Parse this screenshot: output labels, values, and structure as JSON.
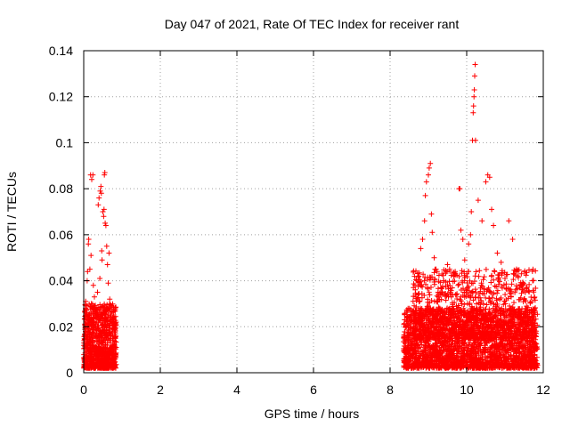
{
  "chart_data": {
    "type": "scatter",
    "title": "Day 047 of 2021, Rate Of TEC Index for receiver rant",
    "xlabel": "GPS time / hours",
    "ylabel": "ROTI / TECUs",
    "xlim": [
      0,
      12
    ],
    "ylim": [
      0,
      0.14
    ],
    "x_ticks": [
      0,
      2,
      4,
      6,
      8,
      10,
      12
    ],
    "y_ticks": [
      0,
      0.02,
      0.04,
      0.06,
      0.08,
      0.1,
      0.12,
      0.14
    ],
    "grid": true,
    "marker": "+",
    "color": "#ff0000",
    "series": [
      {
        "values": [
          {
            "x": 0.02,
            "y": 0.005
          },
          {
            "x": 0.03,
            "y": 0.012
          },
          {
            "x": 0.04,
            "y": 0.021
          },
          {
            "x": 0.05,
            "y": 0.028
          },
          {
            "x": 0.05,
            "y": 0.031
          },
          {
            "x": 0.06,
            "y": 0.016
          },
          {
            "x": 0.08,
            "y": 0.009
          },
          {
            "x": 0.09,
            "y": 0.04
          },
          {
            "x": 0.1,
            "y": 0.044
          },
          {
            "x": 0.11,
            "y": 0.018
          },
          {
            "x": 0.12,
            "y": 0.056
          },
          {
            "x": 0.13,
            "y": 0.058
          },
          {
            "x": 0.14,
            "y": 0.007
          },
          {
            "x": 0.15,
            "y": 0.025
          },
          {
            "x": 0.16,
            "y": 0.045
          },
          {
            "x": 0.18,
            "y": 0.086
          },
          {
            "x": 0.19,
            "y": 0.051
          },
          {
            "x": 0.2,
            "y": 0.03
          },
          {
            "x": 0.21,
            "y": 0.084
          },
          {
            "x": 0.22,
            "y": 0.013
          },
          {
            "x": 0.24,
            "y": 0.086
          },
          {
            "x": 0.25,
            "y": 0.038
          },
          {
            "x": 0.26,
            "y": 0.022
          },
          {
            "x": 0.28,
            "y": 0.033
          },
          {
            "x": 0.3,
            "y": 0.011
          },
          {
            "x": 0.32,
            "y": 0.019
          },
          {
            "x": 0.34,
            "y": 0.027
          },
          {
            "x": 0.36,
            "y": 0.035
          },
          {
            "x": 0.38,
            "y": 0.073
          },
          {
            "x": 0.4,
            "y": 0.076
          },
          {
            "x": 0.42,
            "y": 0.041
          },
          {
            "x": 0.43,
            "y": 0.079
          },
          {
            "x": 0.45,
            "y": 0.081
          },
          {
            "x": 0.46,
            "y": 0.078
          },
          {
            "x": 0.47,
            "y": 0.053
          },
          {
            "x": 0.48,
            "y": 0.049
          },
          {
            "x": 0.5,
            "y": 0.07
          },
          {
            "x": 0.52,
            "y": 0.068
          },
          {
            "x": 0.53,
            "y": 0.071
          },
          {
            "x": 0.54,
            "y": 0.086
          },
          {
            "x": 0.55,
            "y": 0.087
          },
          {
            "x": 0.56,
            "y": 0.065
          },
          {
            "x": 0.58,
            "y": 0.064
          },
          {
            "x": 0.6,
            "y": 0.055
          },
          {
            "x": 0.62,
            "y": 0.047
          },
          {
            "x": 0.64,
            "y": 0.039
          },
          {
            "x": 0.66,
            "y": 0.052
          },
          {
            "x": 0.68,
            "y": 0.032
          },
          {
            "x": 0.7,
            "y": 0.024
          },
          {
            "x": 0.72,
            "y": 0.017
          },
          {
            "x": 0.74,
            "y": 0.029
          },
          {
            "x": 0.76,
            "y": 0.014
          },
          {
            "x": 0.78,
            "y": 0.008
          },
          {
            "x": 0.8,
            "y": 0.021
          },
          {
            "x": 0.82,
            "y": 0.006
          },
          {
            "x": 8.4,
            "y": 0.005
          },
          {
            "x": 8.45,
            "y": 0.016
          },
          {
            "x": 8.5,
            "y": 0.024
          },
          {
            "x": 8.55,
            "y": 0.011
          },
          {
            "x": 8.6,
            "y": 0.031
          },
          {
            "x": 8.65,
            "y": 0.038
          },
          {
            "x": 8.7,
            "y": 0.019
          },
          {
            "x": 8.75,
            "y": 0.042
          },
          {
            "x": 8.8,
            "y": 0.054
          },
          {
            "x": 8.85,
            "y": 0.058
          },
          {
            "x": 8.9,
            "y": 0.066
          },
          {
            "x": 8.92,
            "y": 0.077
          },
          {
            "x": 8.95,
            "y": 0.083
          },
          {
            "x": 9.0,
            "y": 0.086
          },
          {
            "x": 9.02,
            "y": 0.089
          },
          {
            "x": 9.05,
            "y": 0.091
          },
          {
            "x": 9.08,
            "y": 0.069
          },
          {
            "x": 9.1,
            "y": 0.061
          },
          {
            "x": 9.15,
            "y": 0.05
          },
          {
            "x": 9.2,
            "y": 0.045
          },
          {
            "x": 9.25,
            "y": 0.035
          },
          {
            "x": 9.3,
            "y": 0.028
          },
          {
            "x": 9.35,
            "y": 0.022
          },
          {
            "x": 9.4,
            "y": 0.04
          },
          {
            "x": 9.5,
            "y": 0.047
          },
          {
            "x": 9.6,
            "y": 0.033
          },
          {
            "x": 9.7,
            "y": 0.044
          },
          {
            "x": 9.8,
            "y": 0.08
          },
          {
            "x": 9.82,
            "y": 0.08
          },
          {
            "x": 9.85,
            "y": 0.062
          },
          {
            "x": 9.9,
            "y": 0.058
          },
          {
            "x": 9.95,
            "y": 0.049
          },
          {
            "x": 10.0,
            "y": 0.043
          },
          {
            "x": 10.05,
            "y": 0.056
          },
          {
            "x": 10.1,
            "y": 0.06
          },
          {
            "x": 10.12,
            "y": 0.07
          },
          {
            "x": 10.15,
            "y": 0.101
          },
          {
            "x": 10.17,
            "y": 0.113
          },
          {
            "x": 10.18,
            "y": 0.116
          },
          {
            "x": 10.19,
            "y": 0.12
          },
          {
            "x": 10.2,
            "y": 0.123
          },
          {
            "x": 10.21,
            "y": 0.129
          },
          {
            "x": 10.22,
            "y": 0.134
          },
          {
            "x": 10.23,
            "y": 0.101
          },
          {
            "x": 10.3,
            "y": 0.075
          },
          {
            "x": 10.4,
            "y": 0.066
          },
          {
            "x": 10.5,
            "y": 0.083
          },
          {
            "x": 10.55,
            "y": 0.086
          },
          {
            "x": 10.6,
            "y": 0.085
          },
          {
            "x": 10.65,
            "y": 0.071
          },
          {
            "x": 10.7,
            "y": 0.064
          },
          {
            "x": 10.8,
            "y": 0.052
          },
          {
            "x": 10.9,
            "y": 0.048
          },
          {
            "x": 11.0,
            "y": 0.041
          },
          {
            "x": 11.1,
            "y": 0.066
          },
          {
            "x": 11.2,
            "y": 0.058
          },
          {
            "x": 11.3,
            "y": 0.045
          },
          {
            "x": 11.4,
            "y": 0.038
          },
          {
            "x": 11.5,
            "y": 0.032
          },
          {
            "x": 11.6,
            "y": 0.027
          },
          {
            "x": 11.7,
            "y": 0.021
          },
          {
            "x": 11.8,
            "y": 0.016
          }
        ],
        "dense_clusters": [
          {
            "x_range": [
              0.0,
              0.85
            ],
            "y_range": [
              0.002,
              0.03
            ],
            "count": 900
          },
          {
            "x_range": [
              8.35,
              11.85
            ],
            "y_range": [
              0.002,
              0.028
            ],
            "count": 2600
          },
          {
            "x_range": [
              8.6,
              11.8
            ],
            "y_range": [
              0.015,
              0.045
            ],
            "count": 900
          }
        ]
      }
    ]
  }
}
